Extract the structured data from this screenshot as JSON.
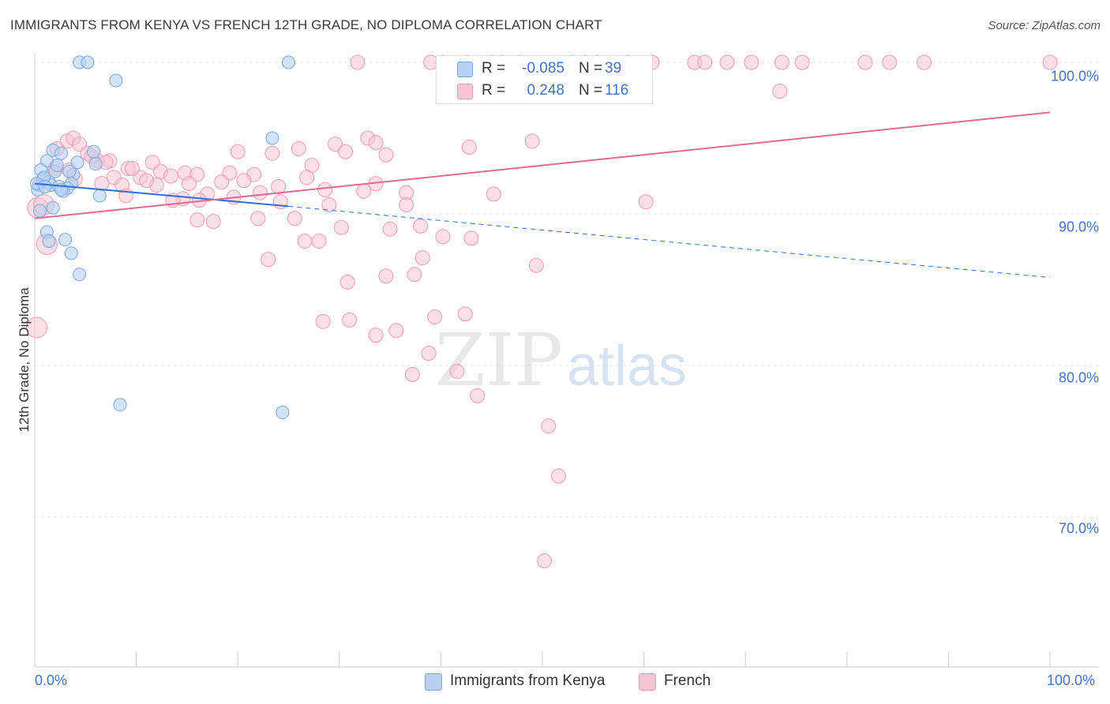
{
  "header": {
    "title": "IMMIGRANTS FROM KENYA VS FRENCH 12TH GRADE, NO DIPLOMA CORRELATION CHART",
    "source": "Source: ZipAtlas.com"
  },
  "watermark": {
    "zip": "ZIP",
    "atlas": "atlas"
  },
  "legend": {
    "rows": [
      {
        "r_label": "R =",
        "r_value": "-0.085",
        "n_label": "N =",
        "n_value": "39"
      },
      {
        "r_label": "R =",
        "r_value": "0.248",
        "n_label": "N =",
        "n_value": "116"
      }
    ]
  },
  "colors": {
    "kenya_fill": "#b8d0f2",
    "kenya_stroke": "#7aa6e0",
    "kenya_line": "#2f6fd1",
    "french_fill": "#f7c4d4",
    "french_stroke": "#ef9bb6",
    "french_line": "#e06b92",
    "tick_label": "#4472c4",
    "grid": "#e6e6e6"
  },
  "chart_data": {
    "type": "scatter",
    "title": "IMMIGRANTS FROM KENYA VS FRENCH 12TH GRADE, NO DIPLOMA CORRELATION CHART",
    "xlabel": "",
    "ylabel": "12th Grade, No Diploma",
    "xlim": [
      0,
      100
    ],
    "ylim": [
      60,
      100
    ],
    "x_tick_labels": [
      "0.0%",
      "100.0%"
    ],
    "y_ticks": [
      {
        "value": 100,
        "label": "100.0%"
      },
      {
        "value": 90,
        "label": "90.0%"
      },
      {
        "value": 80,
        "label": "80.0%"
      },
      {
        "value": 70,
        "label": "70.0%"
      }
    ],
    "grid": true,
    "legend_position": "bottom-center",
    "series": [
      {
        "name": "Immigrants from Kenya",
        "r": -0.085,
        "n": 39,
        "trend": {
          "x0": 0,
          "y0": 92.0,
          "x1": 25,
          "y1": 90.5,
          "dashed_to_x": 100,
          "dashed_to_y": 85.8
        },
        "points": [
          [
            4.4,
            100
          ],
          [
            5.2,
            100
          ],
          [
            25.0,
            100
          ],
          [
            8.0,
            98.8
          ],
          [
            23.4,
            95.0
          ],
          [
            1.8,
            94.2
          ],
          [
            2.6,
            94.0
          ],
          [
            5.8,
            94.1
          ],
          [
            1.2,
            93.5
          ],
          [
            4.2,
            93.4
          ],
          [
            6.0,
            93.3
          ],
          [
            0.6,
            92.9
          ],
          [
            2.0,
            92.8
          ],
          [
            3.8,
            92.6
          ],
          [
            0.8,
            92.3
          ],
          [
            1.4,
            92.1
          ],
          [
            3.6,
            92.0
          ],
          [
            0.4,
            91.9
          ],
          [
            1.6,
            91.9
          ],
          [
            2.4,
            91.8
          ],
          [
            3.2,
            91.7
          ],
          [
            0.3,
            91.6
          ],
          [
            2.8,
            91.5
          ],
          [
            6.4,
            91.2
          ],
          [
            1.8,
            90.4
          ],
          [
            0.5,
            90.2
          ],
          [
            1.2,
            88.8
          ],
          [
            3.0,
            88.3
          ],
          [
            1.4,
            88.2
          ],
          [
            3.6,
            87.4
          ],
          [
            4.4,
            86.0
          ],
          [
            8.4,
            77.4
          ],
          [
            24.4,
            76.9
          ],
          [
            0.9,
            92.4
          ],
          [
            2.2,
            93.2
          ],
          [
            0.2,
            92.0
          ],
          [
            1.0,
            91.8
          ],
          [
            2.6,
            91.6
          ],
          [
            3.4,
            92.8
          ]
        ]
      },
      {
        "name": "French",
        "r": 0.248,
        "n": 116,
        "trend": {
          "x0": 0,
          "y0": 89.7,
          "x1": 100,
          "y1": 96.7
        },
        "points": [
          [
            31.8,
            100
          ],
          [
            39.0,
            100
          ],
          [
            40.2,
            100
          ],
          [
            42.6,
            100
          ],
          [
            45.0,
            100
          ],
          [
            46.0,
            100
          ],
          [
            47.8,
            100
          ],
          [
            53.0,
            100
          ],
          [
            54.2,
            100
          ],
          [
            55.4,
            100
          ],
          [
            58.4,
            100
          ],
          [
            60.8,
            100
          ],
          [
            65.0,
            100
          ],
          [
            66.0,
            100
          ],
          [
            68.2,
            100
          ],
          [
            70.6,
            100
          ],
          [
            73.6,
            100
          ],
          [
            75.6,
            100
          ],
          [
            81.8,
            100
          ],
          [
            84.2,
            100
          ],
          [
            87.6,
            100
          ],
          [
            100.0,
            100
          ],
          [
            73.4,
            98.1
          ],
          [
            0.3,
            90.4
          ],
          [
            1.2,
            88.0
          ],
          [
            0.2,
            82.5
          ],
          [
            3.2,
            94.8
          ],
          [
            3.8,
            95.0
          ],
          [
            4.4,
            94.6
          ],
          [
            2.2,
            94.3
          ],
          [
            5.2,
            94.0
          ],
          [
            6.2,
            93.5
          ],
          [
            7.4,
            93.5
          ],
          [
            11.6,
            93.4
          ],
          [
            27.3,
            93.2
          ],
          [
            9.2,
            93.0
          ],
          [
            12.4,
            92.8
          ],
          [
            14.8,
            92.7
          ],
          [
            7.8,
            92.4
          ],
          [
            10.4,
            92.4
          ],
          [
            13.4,
            92.5
          ],
          [
            16.0,
            92.6
          ],
          [
            19.2,
            92.7
          ],
          [
            21.6,
            92.6
          ],
          [
            26.8,
            92.4
          ],
          [
            3.4,
            92.9
          ],
          [
            2.0,
            93.0
          ],
          [
            8.6,
            91.9
          ],
          [
            12.0,
            91.9
          ],
          [
            15.2,
            92.0
          ],
          [
            18.4,
            92.1
          ],
          [
            20.6,
            92.2
          ],
          [
            24.0,
            91.8
          ],
          [
            28.6,
            91.6
          ],
          [
            32.4,
            91.5
          ],
          [
            9.0,
            91.2
          ],
          [
            14.6,
            91.0
          ],
          [
            17.0,
            91.3
          ],
          [
            19.6,
            91.1
          ],
          [
            22.2,
            91.4
          ],
          [
            33.6,
            92.0
          ],
          [
            36.6,
            91.4
          ],
          [
            45.2,
            91.3
          ],
          [
            16.2,
            90.9
          ],
          [
            13.6,
            90.9
          ],
          [
            29.0,
            90.6
          ],
          [
            36.6,
            90.6
          ],
          [
            24.2,
            90.8
          ],
          [
            60.2,
            90.8
          ],
          [
            26.6,
            88.2
          ],
          [
            30.2,
            89.1
          ],
          [
            35.0,
            89.0
          ],
          [
            38.0,
            89.2
          ],
          [
            40.2,
            88.5
          ],
          [
            43.0,
            88.4
          ],
          [
            16.0,
            89.6
          ],
          [
            22.0,
            89.7
          ],
          [
            25.6,
            89.7
          ],
          [
            17.6,
            89.5
          ],
          [
            28.0,
            88.2
          ],
          [
            38.2,
            87.1
          ],
          [
            23.0,
            87.0
          ],
          [
            37.4,
            86.0
          ],
          [
            49.4,
            86.6
          ],
          [
            34.6,
            85.9
          ],
          [
            30.8,
            85.5
          ],
          [
            28.4,
            82.9
          ],
          [
            31.0,
            83.0
          ],
          [
            35.6,
            82.3
          ],
          [
            39.4,
            83.2
          ],
          [
            42.4,
            83.4
          ],
          [
            33.6,
            82.0
          ],
          [
            38.8,
            80.8
          ],
          [
            41.6,
            79.6
          ],
          [
            37.2,
            79.4
          ],
          [
            43.6,
            78.0
          ],
          [
            50.6,
            76.0
          ],
          [
            51.6,
            72.7
          ],
          [
            50.2,
            67.1
          ],
          [
            29.6,
            94.6
          ],
          [
            32.8,
            95.0
          ],
          [
            33.6,
            94.7
          ],
          [
            26.0,
            94.3
          ],
          [
            23.4,
            94.0
          ],
          [
            30.6,
            94.1
          ],
          [
            34.6,
            93.9
          ],
          [
            42.8,
            94.4
          ],
          [
            49.0,
            94.8
          ],
          [
            20.0,
            94.1
          ],
          [
            9.6,
            93.0
          ],
          [
            11.0,
            92.2
          ],
          [
            6.6,
            92.0
          ],
          [
            4.0,
            92.3
          ],
          [
            5.6,
            93.8
          ],
          [
            7.0,
            93.4
          ],
          [
            0.9,
            90.6
          ]
        ]
      }
    ]
  }
}
